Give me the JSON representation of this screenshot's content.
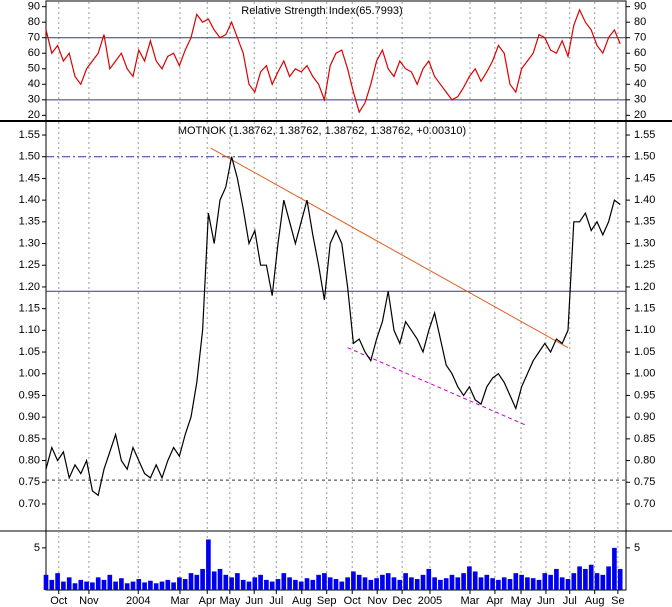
{
  "chart_data": [
    {
      "type": "line",
      "title": "Relative Strength Index(65.7993)",
      "color": "#dd0000",
      "x": [
        0,
        1,
        2,
        3,
        4,
        5,
        6,
        7,
        8,
        9,
        10,
        11,
        12,
        13,
        14,
        15,
        16,
        17,
        18,
        19,
        20,
        21,
        22,
        23,
        24,
        25,
        26,
        27,
        28,
        29,
        30,
        31,
        32,
        33,
        34,
        35,
        36,
        37,
        38,
        39,
        40,
        41,
        42,
        43,
        44,
        45,
        46,
        47,
        48,
        49,
        50,
        51,
        52,
        53,
        54,
        55,
        56,
        57,
        58,
        59,
        60,
        61,
        62,
        63,
        64,
        65,
        66,
        67,
        68,
        69,
        70,
        71,
        72,
        73,
        74,
        75,
        76,
        77,
        78,
        79,
        80,
        81,
        82,
        83,
        84,
        85,
        86,
        87,
        88,
        89,
        90,
        91,
        92,
        93,
        94,
        95,
        96,
        97,
        98,
        99
      ],
      "values": [
        75,
        60,
        65,
        55,
        60,
        45,
        40,
        50,
        55,
        60,
        72,
        50,
        55,
        60,
        50,
        45,
        62,
        55,
        68,
        55,
        50,
        58,
        60,
        52,
        62,
        70,
        85,
        80,
        82,
        75,
        70,
        72,
        80,
        70,
        60,
        40,
        35,
        48,
        52,
        40,
        48,
        55,
        45,
        50,
        48,
        52,
        45,
        40,
        30,
        52,
        60,
        62,
        50,
        35,
        22,
        28,
        40,
        55,
        62,
        50,
        45,
        55,
        50,
        48,
        40,
        50,
        55,
        45,
        40,
        35,
        30,
        32,
        38,
        45,
        50,
        42,
        48,
        55,
        65,
        60,
        40,
        35,
        50,
        55,
        60,
        72,
        70,
        62,
        60,
        68,
        58,
        78,
        88,
        80,
        75,
        65,
        60,
        70,
        75,
        66
      ],
      "xlim": [
        0,
        100
      ],
      "ylim": [
        17,
        93
      ],
      "yticks": [
        20,
        30,
        40,
        50,
        60,
        70,
        80,
        90
      ],
      "lines": [
        {
          "from": [
            0,
            70
          ],
          "to": [
            100,
            70
          ],
          "color": "#333399",
          "dash": "none"
        },
        {
          "from": [
            0,
            30
          ],
          "to": [
            100,
            30
          ],
          "color": "#333399",
          "dash": "none"
        }
      ]
    },
    {
      "type": "line",
      "title": "MOTNOK (1.38762, 1.38762, 1.38762, 1.38762, +0.00310)",
      "color": "#000000",
      "x": [
        0,
        1,
        2,
        3,
        4,
        5,
        6,
        7,
        8,
        9,
        10,
        11,
        12,
        13,
        14,
        15,
        16,
        17,
        18,
        19,
        20,
        21,
        22,
        23,
        24,
        25,
        26,
        27,
        28,
        29,
        30,
        31,
        32,
        33,
        34,
        35,
        36,
        37,
        38,
        39,
        40,
        41,
        42,
        43,
        44,
        45,
        46,
        47,
        48,
        49,
        50,
        51,
        52,
        53,
        54,
        55,
        56,
        57,
        58,
        59,
        60,
        61,
        62,
        63,
        64,
        65,
        66,
        67,
        68,
        69,
        70,
        71,
        72,
        73,
        74,
        75,
        76,
        77,
        78,
        79,
        80,
        81,
        82,
        83,
        84,
        85,
        86,
        87,
        88,
        89,
        90,
        91,
        92,
        93,
        94,
        95,
        96,
        97,
        98,
        99
      ],
      "values": [
        0.78,
        0.83,
        0.8,
        0.82,
        0.76,
        0.79,
        0.77,
        0.8,
        0.73,
        0.72,
        0.78,
        0.82,
        0.86,
        0.8,
        0.78,
        0.83,
        0.8,
        0.77,
        0.76,
        0.79,
        0.76,
        0.8,
        0.83,
        0.81,
        0.86,
        0.9,
        0.98,
        1.1,
        1.37,
        1.3,
        1.4,
        1.43,
        1.5,
        1.45,
        1.38,
        1.3,
        1.33,
        1.25,
        1.25,
        1.18,
        1.3,
        1.4,
        1.35,
        1.3,
        1.35,
        1.4,
        1.32,
        1.25,
        1.17,
        1.3,
        1.33,
        1.3,
        1.2,
        1.07,
        1.08,
        1.05,
        1.03,
        1.08,
        1.12,
        1.19,
        1.1,
        1.07,
        1.12,
        1.1,
        1.08,
        1.05,
        1.1,
        1.14,
        1.08,
        1.02,
        1.0,
        0.97,
        0.95,
        0.97,
        0.94,
        0.93,
        0.97,
        0.99,
        1.0,
        0.98,
        0.95,
        0.92,
        0.97,
        1.0,
        1.03,
        1.05,
        1.07,
        1.05,
        1.08,
        1.07,
        1.1,
        1.35,
        1.35,
        1.37,
        1.33,
        1.35,
        1.32,
        1.35,
        1.4,
        1.39
      ],
      "xlim": [
        0,
        100
      ],
      "ylim": [
        0.64,
        1.58
      ],
      "yticks": [
        {
          "value": 0.7,
          "label": "0.70"
        },
        0.75,
        {
          "value": 0.8,
          "label": "0.80"
        },
        0.85,
        {
          "value": 0.9,
          "label": "0.90"
        },
        0.95,
        {
          "value": 1,
          "label": "1.00"
        },
        1.05,
        {
          "value": 1.1,
          "label": "1.10"
        },
        1.15,
        {
          "value": 1.2,
          "label": "1.20"
        },
        1.25,
        {
          "value": 1.3,
          "label": "1.30"
        },
        1.35,
        {
          "value": 1.4,
          "label": "1.40"
        },
        1.45,
        {
          "value": 1.5,
          "label": "1.50"
        },
        1.55
      ],
      "lines": [
        {
          "from": [
            0,
            1.5
          ],
          "to": [
            100,
            1.5
          ],
          "color": "#333399",
          "dash": "8 3 2 3"
        },
        {
          "from": [
            0,
            1.19
          ],
          "to": [
            100,
            1.19
          ],
          "color": "#333399",
          "dash": "none"
        },
        {
          "from": [
            0,
            0.755
          ],
          "to": [
            100,
            0.755
          ],
          "color": "#333333",
          "dash": "3 3"
        },
        {
          "from": [
            28.4,
            1.52
          ],
          "to": [
            90,
            1.06
          ],
          "color": "#e06020",
          "dash": "none"
        },
        {
          "from": [
            52,
            1.06
          ],
          "to": [
            83,
            0.88
          ],
          "color": "#cc00cc",
          "dash": "4 3"
        }
      ]
    },
    {
      "type": "bar",
      "color": "#0000ee",
      "x": [
        0,
        1,
        2,
        3,
        4,
        5,
        6,
        7,
        8,
        9,
        10,
        11,
        12,
        13,
        14,
        15,
        16,
        17,
        18,
        19,
        20,
        21,
        22,
        23,
        24,
        25,
        26,
        27,
        28,
        29,
        30,
        31,
        32,
        33,
        34,
        35,
        36,
        37,
        38,
        39,
        40,
        41,
        42,
        43,
        44,
        45,
        46,
        47,
        48,
        49,
        50,
        51,
        52,
        53,
        54,
        55,
        56,
        57,
        58,
        59,
        60,
        61,
        62,
        63,
        64,
        65,
        66,
        67,
        68,
        69,
        70,
        71,
        72,
        73,
        74,
        75,
        76,
        77,
        78,
        79,
        80,
        81,
        82,
        83,
        84,
        85,
        86,
        87,
        88,
        89,
        90,
        91,
        92,
        93,
        94,
        95,
        96,
        97,
        98,
        99
      ],
      "values": [
        1.8,
        1.2,
        2.0,
        1.0,
        1.5,
        0.8,
        1.2,
        1.0,
        0.9,
        1.5,
        1.2,
        1.8,
        1.0,
        1.4,
        0.8,
        1.0,
        1.3,
        0.9,
        1.1,
        0.8,
        1.0,
        1.2,
        0.9,
        1.5,
        1.3,
        2.0,
        1.8,
        2.5,
        6.0,
        2.2,
        2.5,
        1.8,
        1.5,
        2.0,
        1.2,
        1.0,
        1.5,
        1.8,
        1.2,
        1.0,
        1.3,
        2.0,
        1.5,
        1.2,
        1.0,
        1.4,
        1.2,
        1.8,
        2.0,
        1.5,
        1.3,
        1.0,
        1.5,
        2.2,
        1.8,
        1.5,
        1.2,
        1.4,
        1.8,
        2.0,
        1.5,
        1.2,
        2.0,
        1.5,
        1.3,
        1.8,
        2.5,
        1.5,
        1.2,
        1.4,
        1.8,
        1.5,
        2.0,
        2.8,
        2.2,
        1.5,
        1.8,
        1.4,
        1.2,
        1.5,
        1.3,
        2.0,
        1.8,
        1.5,
        1.4,
        1.2,
        2.0,
        1.8,
        2.5,
        1.5,
        1.3,
        2.0,
        2.8,
        2.5,
        3.0,
        2.0,
        1.8,
        2.8,
        5.0,
        2.5
      ],
      "xlim": [
        0,
        100
      ],
      "ylim": [
        0,
        7
      ],
      "yticks": [
        5
      ],
      "xticks": [
        {
          "value": 2.2,
          "label": "Oct"
        },
        {
          "value": 7.4,
          "label": "Nov"
        },
        {
          "value": 15.9,
          "label": "2004"
        },
        {
          "value": 23.1,
          "label": "Mar"
        },
        {
          "value": 27.8,
          "label": "Apr"
        },
        {
          "value": 31.7,
          "label": "May"
        },
        {
          "value": 35.9,
          "label": "Jun"
        },
        {
          "value": 39.7,
          "label": "Jul"
        },
        {
          "value": 44.1,
          "label": "Aug"
        },
        {
          "value": 48.4,
          "label": "Sep"
        },
        {
          "value": 52.8,
          "label": "Oct"
        },
        {
          "value": 57.1,
          "label": "Nov"
        },
        {
          "value": 61.4,
          "label": "Dec"
        },
        {
          "value": 66.2,
          "label": "2005"
        },
        {
          "value": 73.1,
          "label": "Mar"
        },
        {
          "value": 77.4,
          "label": "Apr"
        },
        {
          "value": 81.9,
          "label": "May"
        },
        {
          "value": 86.2,
          "label": "Jun"
        },
        {
          "value": 90.3,
          "label": "Jul"
        },
        {
          "value": 94.6,
          "label": "Aug"
        },
        {
          "value": 98.6,
          "label": "Se"
        }
      ]
    }
  ]
}
